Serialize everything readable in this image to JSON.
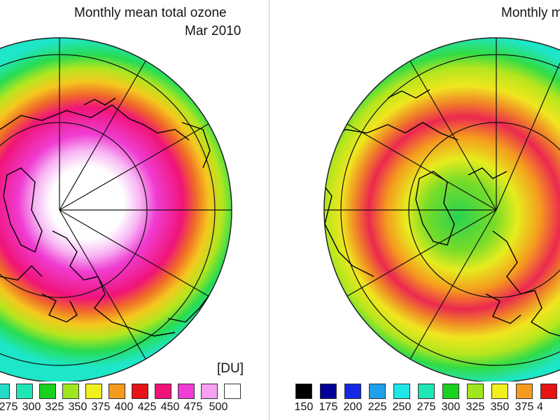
{
  "left_map": {
    "title_line1": "Monthly mean total ozone",
    "title_line2": "Mar 2010",
    "unit": "[DU]",
    "legend": [
      {
        "label": "",
        "color": "#22dcc8"
      },
      {
        "label": "275",
        "color": "#1ee6b4"
      },
      {
        "label": "300",
        "color": "#18d21e"
      },
      {
        "label": "325",
        "color": "#a0e61e"
      },
      {
        "label": "350",
        "color": "#f0f01e"
      },
      {
        "label": "375",
        "color": "#f59b1e"
      },
      {
        "label": "400",
        "color": "#e61414"
      },
      {
        "label": "425",
        "color": "#f01478"
      },
      {
        "label": "450",
        "color": "#f03cd2"
      },
      {
        "label": "475",
        "color": "#f5a0f0"
      },
      {
        "label": "500",
        "color": "#ffffff"
      }
    ]
  },
  "right_map": {
    "title_line1": "Monthly m",
    "legend": [
      {
        "label": "150",
        "color": "#000000"
      },
      {
        "label": "175",
        "color": "#00009b"
      },
      {
        "label": "200",
        "color": "#1428e6"
      },
      {
        "label": "225",
        "color": "#1ea0eb"
      },
      {
        "label": "250",
        "color": "#1ee6e6"
      },
      {
        "label": "275",
        "color": "#1ee6b4"
      },
      {
        "label": "300",
        "color": "#18d21e"
      },
      {
        "label": "325",
        "color": "#a0e61e"
      },
      {
        "label": "350",
        "color": "#f0f01e"
      },
      {
        "label": "375",
        "color": "#f59b1e"
      },
      {
        "label": "4",
        "color": "#e61414"
      }
    ]
  }
}
